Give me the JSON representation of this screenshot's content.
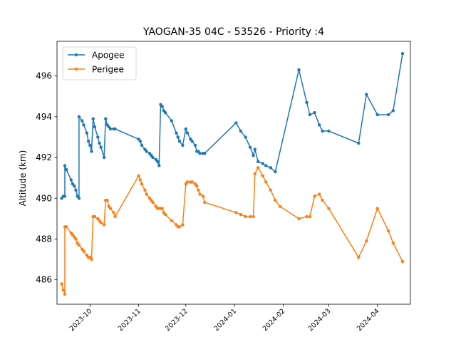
{
  "chart_data": {
    "type": "line",
    "title": "YAOGAN-35 04C - 53526 - Priority :4",
    "xlabel": "",
    "ylabel": "Altitude (km)",
    "x_range": [
      "2023-09-10",
      "2024-04-22"
    ],
    "ylim": [
      484.8,
      497.7
    ],
    "x_ticks": [
      "2023-10",
      "2023-11",
      "2023-12",
      "2024-01",
      "2024-02",
      "2024-03",
      "2024-04"
    ],
    "y_ticks": [
      486,
      488,
      490,
      492,
      494,
      496
    ],
    "grid": false,
    "legend_position": "top-left",
    "series": [
      {
        "name": "Apogee",
        "color": "#1f77b4",
        "points": [
          [
            "2023-09-13",
            490.0
          ],
          [
            "2023-09-14",
            490.1
          ],
          [
            "2023-09-15",
            490.1
          ],
          [
            "2023-09-15",
            491.6
          ],
          [
            "2023-09-16",
            491.4
          ],
          [
            "2023-09-19",
            490.9
          ],
          [
            "2023-09-20",
            490.7
          ],
          [
            "2023-09-21",
            490.6
          ],
          [
            "2023-09-22",
            490.4
          ],
          [
            "2023-09-23",
            490.1
          ],
          [
            "2023-09-24",
            490.0
          ],
          [
            "2023-09-24",
            494.0
          ],
          [
            "2023-09-26",
            493.8
          ],
          [
            "2023-09-27",
            493.6
          ],
          [
            "2023-09-29",
            493.2
          ],
          [
            "2023-09-30",
            492.8
          ],
          [
            "2023-10-01",
            492.6
          ],
          [
            "2023-10-02",
            492.3
          ],
          [
            "2023-10-03",
            493.9
          ],
          [
            "2023-10-04",
            493.5
          ],
          [
            "2023-10-06",
            493.0
          ],
          [
            "2023-10-07",
            492.7
          ],
          [
            "2023-10-08",
            492.5
          ],
          [
            "2023-10-10",
            492.0
          ],
          [
            "2023-10-11",
            493.9
          ],
          [
            "2023-10-12",
            493.6
          ],
          [
            "2023-10-13",
            493.5
          ],
          [
            "2023-10-14",
            493.4
          ],
          [
            "2023-10-16",
            493.4
          ],
          [
            "2023-10-17",
            493.4
          ],
          [
            "2023-11-01",
            492.9
          ],
          [
            "2023-11-02",
            492.8
          ],
          [
            "2023-11-03",
            492.6
          ],
          [
            "2023-11-05",
            492.4
          ],
          [
            "2023-11-06",
            492.3
          ],
          [
            "2023-11-08",
            492.2
          ],
          [
            "2023-11-09",
            492.1
          ],
          [
            "2023-11-10",
            492.0
          ],
          [
            "2023-11-12",
            491.9
          ],
          [
            "2023-11-13",
            491.8
          ],
          [
            "2023-11-14",
            491.6
          ],
          [
            "2023-11-15",
            494.6
          ],
          [
            "2023-11-16",
            494.5
          ],
          [
            "2023-11-17",
            494.3
          ],
          [
            "2023-11-18",
            494.2
          ],
          [
            "2023-11-22",
            493.8
          ],
          [
            "2023-11-25",
            493.2
          ],
          [
            "2023-11-26",
            493.0
          ],
          [
            "2023-11-27",
            492.8
          ],
          [
            "2023-11-29",
            492.6
          ],
          [
            "2023-12-01",
            493.4
          ],
          [
            "2023-12-02",
            493.2
          ],
          [
            "2023-12-04",
            492.9
          ],
          [
            "2023-12-05",
            492.8
          ],
          [
            "2023-12-07",
            492.6
          ],
          [
            "2023-12-08",
            492.3
          ],
          [
            "2023-12-09",
            492.3
          ],
          [
            "2023-12-10",
            492.2
          ],
          [
            "2023-12-12",
            492.2
          ],
          [
            "2023-12-13",
            492.2
          ],
          [
            "2024-01-02",
            493.7
          ],
          [
            "2024-01-05",
            493.3
          ],
          [
            "2024-01-08",
            493.0
          ],
          [
            "2024-01-11",
            492.5
          ],
          [
            "2024-01-13",
            492.1
          ],
          [
            "2024-01-14",
            492.4
          ],
          [
            "2024-01-16",
            491.8
          ],
          [
            "2024-01-19",
            491.7
          ],
          [
            "2024-01-21",
            491.6
          ],
          [
            "2024-01-24",
            491.5
          ],
          [
            "2024-01-27",
            491.3
          ],
          [
            "2024-02-11",
            496.3
          ],
          [
            "2024-02-16",
            494.7
          ],
          [
            "2024-02-18",
            494.1
          ],
          [
            "2024-02-21",
            494.2
          ],
          [
            "2024-02-24",
            493.6
          ],
          [
            "2024-02-26",
            493.3
          ],
          [
            "2024-03-01",
            493.3
          ],
          [
            "2024-03-20",
            492.7
          ],
          [
            "2024-03-25",
            495.1
          ],
          [
            "2024-04-01",
            494.1
          ],
          [
            "2024-04-08",
            494.1
          ],
          [
            "2024-04-11",
            494.3
          ],
          [
            "2024-04-17",
            497.1
          ]
        ]
      },
      {
        "name": "Perigee",
        "color": "#ff7f0e",
        "points": [
          [
            "2023-09-13",
            485.8
          ],
          [
            "2023-09-14",
            485.5
          ],
          [
            "2023-09-15",
            485.3
          ],
          [
            "2023-09-15",
            488.6
          ],
          [
            "2023-09-16",
            488.6
          ],
          [
            "2023-09-19",
            488.3
          ],
          [
            "2023-09-20",
            488.2
          ],
          [
            "2023-09-21",
            488.1
          ],
          [
            "2023-09-22",
            488.0
          ],
          [
            "2023-09-23",
            487.8
          ],
          [
            "2023-09-24",
            487.7
          ],
          [
            "2023-09-26",
            487.5
          ],
          [
            "2023-09-27",
            487.4
          ],
          [
            "2023-09-29",
            487.2
          ],
          [
            "2023-09-30",
            487.1
          ],
          [
            "2023-10-01",
            487.1
          ],
          [
            "2023-10-02",
            487.0
          ],
          [
            "2023-10-03",
            489.1
          ],
          [
            "2023-10-04",
            489.1
          ],
          [
            "2023-10-06",
            489.0
          ],
          [
            "2023-10-07",
            488.9
          ],
          [
            "2023-10-08",
            488.8
          ],
          [
            "2023-10-10",
            488.7
          ],
          [
            "2023-10-11",
            489.9
          ],
          [
            "2023-10-12",
            489.9
          ],
          [
            "2023-10-13",
            489.6
          ],
          [
            "2023-10-14",
            489.5
          ],
          [
            "2023-10-16",
            489.3
          ],
          [
            "2023-10-17",
            489.1
          ],
          [
            "2023-11-01",
            491.1
          ],
          [
            "2023-11-02",
            490.9
          ],
          [
            "2023-11-03",
            490.7
          ],
          [
            "2023-11-05",
            490.4
          ],
          [
            "2023-11-06",
            490.2
          ],
          [
            "2023-11-08",
            490.0
          ],
          [
            "2023-11-09",
            489.9
          ],
          [
            "2023-11-10",
            489.8
          ],
          [
            "2023-11-12",
            489.6
          ],
          [
            "2023-11-13",
            489.5
          ],
          [
            "2023-11-14",
            489.5
          ],
          [
            "2023-11-15",
            489.5
          ],
          [
            "2023-11-16",
            489.5
          ],
          [
            "2023-11-17",
            489.3
          ],
          [
            "2023-11-18",
            489.2
          ],
          [
            "2023-11-22",
            488.9
          ],
          [
            "2023-11-25",
            488.7
          ],
          [
            "2023-11-26",
            488.6
          ],
          [
            "2023-11-27",
            488.6
          ],
          [
            "2023-11-29",
            488.7
          ],
          [
            "2023-12-01",
            490.7
          ],
          [
            "2023-12-02",
            490.8
          ],
          [
            "2023-12-04",
            490.8
          ],
          [
            "2023-12-05",
            490.8
          ],
          [
            "2023-12-07",
            490.7
          ],
          [
            "2023-12-08",
            490.6
          ],
          [
            "2023-12-09",
            490.4
          ],
          [
            "2023-12-10",
            490.2
          ],
          [
            "2023-12-12",
            490.1
          ],
          [
            "2023-12-13",
            489.8
          ],
          [
            "2024-01-02",
            489.3
          ],
          [
            "2024-01-05",
            489.2
          ],
          [
            "2024-01-08",
            489.1
          ],
          [
            "2024-01-11",
            489.1
          ],
          [
            "2024-01-13",
            489.1
          ],
          [
            "2024-01-14",
            491.2
          ],
          [
            "2024-01-16",
            491.5
          ],
          [
            "2024-01-19",
            491.1
          ],
          [
            "2024-01-21",
            490.8
          ],
          [
            "2024-01-24",
            490.4
          ],
          [
            "2024-01-27",
            489.9
          ],
          [
            "2024-01-30",
            489.6
          ],
          [
            "2024-02-11",
            489.0
          ],
          [
            "2024-02-16",
            489.1
          ],
          [
            "2024-02-18",
            489.1
          ],
          [
            "2024-02-21",
            490.1
          ],
          [
            "2024-02-24",
            490.2
          ],
          [
            "2024-02-26",
            489.9
          ],
          [
            "2024-03-01",
            489.5
          ],
          [
            "2024-03-20",
            487.1
          ],
          [
            "2024-03-25",
            487.9
          ],
          [
            "2024-04-01",
            489.5
          ],
          [
            "2024-04-08",
            488.4
          ],
          [
            "2024-04-11",
            487.8
          ],
          [
            "2024-04-17",
            486.9
          ]
        ]
      }
    ]
  }
}
